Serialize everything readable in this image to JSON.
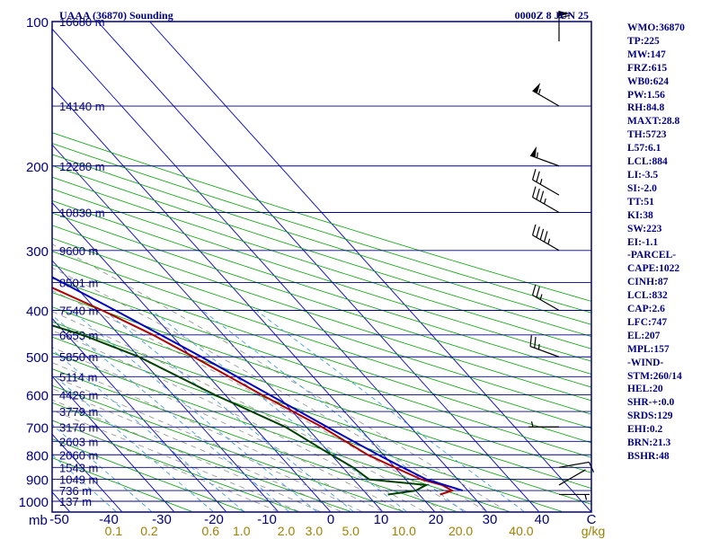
{
  "header": {
    "station": "UAAA (36870) Sounding",
    "time": "0000Z  8 JUN 25"
  },
  "colors": {
    "frame": "#000080",
    "isobar": "#000080",
    "isotherm": "#0000c0",
    "dry_adiabat": "#00a000",
    "moist_adiabat": "#909090",
    "mixing_ratio": "#40a0e0",
    "temperature": "#b00000",
    "dewpoint": "#004000",
    "parcel": "#0000c0",
    "label_text": "#000080",
    "mixing_label": "#a08000",
    "wind_barb": "#000000"
  },
  "chart_data": {
    "type": "line",
    "diagram": "skew-t log-p",
    "pressure_units": "mb",
    "temperature_units": "C",
    "mixing_ratio_units": "g/kg",
    "pressure_levels": [
      100,
      200,
      300,
      400,
      500,
      600,
      700,
      800,
      900,
      1000
    ],
    "pressure_axis_label": "mb",
    "temperature_ticks": [
      "-50",
      "-40",
      "-30",
      "-20",
      "-10",
      "0",
      "10",
      "20",
      "30",
      "40"
    ],
    "temperature_axis_unit": "C",
    "mixing_ratio_labels": [
      "0.1",
      "0.2",
      "0.6",
      "1.0",
      "2.0",
      "3.0",
      "5.0",
      "10.0",
      "20.0",
      "40.0"
    ],
    "mixing_ratio_unit": "g/kg",
    "height_labels": [
      {
        "p": 100,
        "label": "16680 m"
      },
      {
        "p": 150,
        "label": "14140 m"
      },
      {
        "p": 200,
        "label": "12280 m"
      },
      {
        "p": 250,
        "label": "10830 m"
      },
      {
        "p": 300,
        "label": "9600 m"
      },
      {
        "p": 350,
        "label": "8501 m"
      },
      {
        "p": 400,
        "label": "7540 m"
      },
      {
        "p": 450,
        "label": "6653 m"
      },
      {
        "p": 500,
        "label": "5850 m"
      },
      {
        "p": 550,
        "label": "5114 m"
      },
      {
        "p": 600,
        "label": "4426 m"
      },
      {
        "p": 650,
        "label": "3779 m"
      },
      {
        "p": 700,
        "label": "3176 m"
      },
      {
        "p": 750,
        "label": "2603 m"
      },
      {
        "p": 800,
        "label": "2060 m"
      },
      {
        "p": 850,
        "label": "1543 m"
      },
      {
        "p": 900,
        "label": "1049 m"
      },
      {
        "p": 950,
        "label": "736 m"
      },
      {
        "p": 1000,
        "label": "137 m"
      }
    ],
    "series": [
      {
        "name": "temperature",
        "points": [
          [
            968,
            24.0
          ],
          [
            950,
            27.0
          ],
          [
            925,
            26.0
          ],
          [
            900,
            23.0
          ],
          [
            850,
            20.0
          ],
          [
            800,
            17.0
          ],
          [
            700,
            13.0
          ],
          [
            600,
            7.0
          ],
          [
            500,
            0.5
          ],
          [
            450,
            -3.5
          ],
          [
            400,
            -9.0
          ],
          [
            350,
            -16.0
          ],
          [
            300,
            -24.0
          ],
          [
            250,
            -35.0
          ],
          [
            230,
            -44.0
          ],
          [
            200,
            -47.0
          ],
          [
            175,
            -51.0
          ],
          [
            150,
            -53.0
          ],
          [
            125,
            -58.0
          ],
          [
            100,
            -63.0
          ]
        ]
      },
      {
        "name": "dewpoint",
        "points": [
          [
            968,
            14.0
          ],
          [
            950,
            20.0
          ],
          [
            925,
            23.0
          ],
          [
            900,
            13.0
          ],
          [
            850,
            12.0
          ],
          [
            800,
            10.0
          ],
          [
            700,
            6.0
          ],
          [
            600,
            -2.0
          ],
          [
            500,
            -10.0
          ],
          [
            450,
            -17.0
          ],
          [
            400,
            -28.0
          ],
          [
            350,
            -35.0
          ],
          [
            300,
            -44.0
          ],
          [
            250,
            -55.0
          ],
          [
            230,
            -60.0
          ],
          [
            200,
            -62.0
          ],
          [
            175,
            -66.0
          ],
          [
            150,
            -70.0
          ],
          [
            125,
            -78.0
          ],
          [
            100,
            -86.0
          ]
        ]
      },
      {
        "name": "parcel",
        "points": [
          [
            950,
            29.0
          ],
          [
            900,
            24.0
          ],
          [
            850,
            21.5
          ],
          [
            800,
            19.0
          ],
          [
            700,
            14.0
          ],
          [
            600,
            8.5
          ],
          [
            500,
            2.0
          ],
          [
            400,
            -6.5
          ],
          [
            300,
            -18.0
          ],
          [
            250,
            -26.0
          ],
          [
            200,
            -38.0
          ],
          [
            150,
            -55.0
          ],
          [
            125,
            -65.0
          ]
        ]
      }
    ],
    "wind_barbs": [
      {
        "p": 110,
        "dir": 360,
        "kt": 60
      },
      {
        "p": 150,
        "dir": 300,
        "kt": 55
      },
      {
        "p": 200,
        "dir": 290,
        "kt": 55
      },
      {
        "p": 230,
        "dir": 300,
        "kt": 25
      },
      {
        "p": 250,
        "dir": 300,
        "kt": 35
      },
      {
        "p": 300,
        "dir": 300,
        "kt": 45
      },
      {
        "p": 400,
        "dir": 300,
        "kt": 25
      },
      {
        "p": 500,
        "dir": 290,
        "kt": 25
      },
      {
        "p": 700,
        "dir": 270,
        "kt": 5
      },
      {
        "p": 850,
        "dir": 80,
        "kt": 10
      },
      {
        "p": 925,
        "dir": 60,
        "kt": 3
      },
      {
        "p": 968,
        "dir": 90,
        "kt": 5
      }
    ]
  },
  "indices": [
    "WMO:36870",
    "TP:225",
    "MW:147",
    "FRZ:615",
    "WB0:624",
    "PW:1.56",
    "RH:84.8",
    "MAXT:28.8",
    "TH:5723",
    "L57:6.1",
    "LCL:884",
    "LI:-3.5",
    "SI:-2.0",
    "TT:51",
    "KI:38",
    "SW:223",
    "EI:-1.1",
    "-PARCEL-",
    "CAPE:1022",
    "CINH:87",
    "LCL:832",
    "CAP:2.6",
    "LFC:747",
    "EL:207",
    "MPL:157",
    "-WIND-",
    "STM:260/14",
    "HEL:20",
    "SHR-+:0.0",
    "SRDS:129",
    "EHI:0.2",
    "BRN:21.3",
    "BSHR:48"
  ]
}
